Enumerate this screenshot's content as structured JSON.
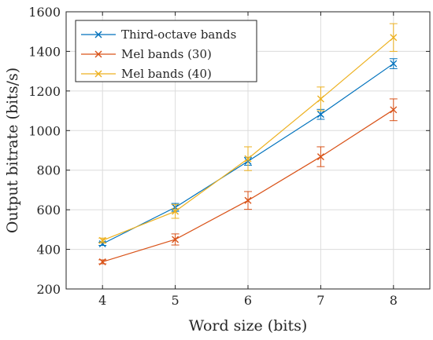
{
  "chart_data": {
    "type": "line",
    "xlabel": "Word size (bits)",
    "ylabel": "Output bitrate (bits/s)",
    "xlim": [
      3.5,
      8.5
    ],
    "ylim": [
      200,
      1600
    ],
    "xticks": [
      "4",
      "5",
      "6",
      "7",
      "8"
    ],
    "yticks": [
      "200",
      "400",
      "600",
      "800",
      "1000",
      "1200",
      "1400",
      "1600"
    ],
    "grid": true,
    "legend_position": "top-left",
    "x": [
      4,
      5,
      6,
      7,
      8
    ],
    "series": [
      {
        "name": "Third-octave bands",
        "color": "#0072BD",
        "marker": "x",
        "values": [
          428,
          612,
          845,
          1082,
          1338
        ],
        "errors": [
          8,
          20,
          20,
          25,
          25
        ]
      },
      {
        "name": "Mel bands (30)",
        "color": "#D95319",
        "marker": "x",
        "values": [
          337,
          450,
          647,
          868,
          1105
        ],
        "errors": [
          10,
          28,
          45,
          50,
          55
        ]
      },
      {
        "name": "Mel bands (40)",
        "color": "#EDB120",
        "marker": "x",
        "values": [
          445,
          592,
          858,
          1160,
          1470
        ],
        "errors": [
          12,
          35,
          60,
          60,
          70
        ]
      }
    ]
  }
}
